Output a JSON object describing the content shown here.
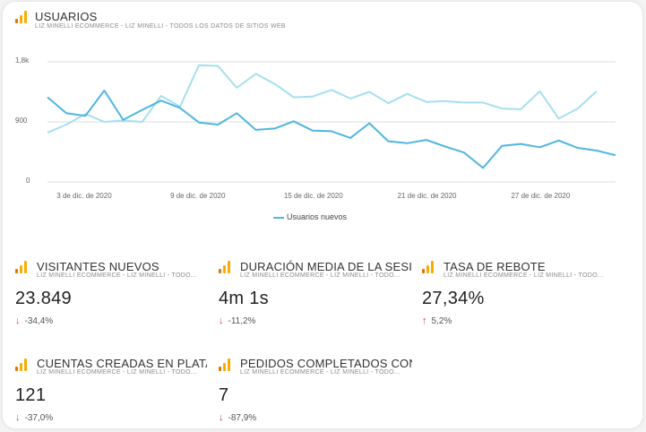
{
  "chart_card": {
    "title": "USUARIOS",
    "subtitle": "LIZ MINELLI ECOMMERCE - LIZ MINELLI - TODOS LOS DATOS DE SITIOS WEB",
    "legend_label": "Usuarios nuevos"
  },
  "chart_data": {
    "type": "line",
    "y_tick_labels": [
      "1,8k",
      "900",
      "0"
    ],
    "ylim": [
      0,
      1800
    ],
    "x_tick_labels": [
      "3 de dic. de 2020",
      "9 de dic. de 2020",
      "15 de dic. de 2020",
      "21 de dic. de 2020",
      "27 de dic. de 2020"
    ],
    "x_tick_indices": [
      2,
      8,
      14,
      20,
      26
    ],
    "grid": true,
    "legend_position": "bottom",
    "series": [
      {
        "name": "Usuarios nuevos",
        "color": "#4fb6e0",
        "values": [
          1270,
          1030,
          990,
          1370,
          930,
          1080,
          1220,
          1110,
          890,
          860,
          1030,
          780,
          800,
          910,
          770,
          760,
          660,
          880,
          610,
          580,
          630,
          530,
          440,
          210,
          540,
          570,
          520,
          620,
          510,
          470,
          400
        ]
      },
      {
        "color": "#a6dff0",
        "values": [
          740,
          860,
          1020,
          900,
          920,
          900,
          1290,
          1130,
          1750,
          1740,
          1410,
          1620,
          1470,
          1270,
          1280,
          1380,
          1250,
          1350,
          1180,
          1320,
          1200,
          1210,
          1190,
          1190,
          1100,
          1090,
          1360,
          950,
          1100,
          1360
        ]
      }
    ]
  },
  "kpis": [
    {
      "title": "VISITANTES NUEVOS",
      "subtitle": "LIZ MINELLI ECOMMERCE - LIZ MINELLI - TODO...",
      "value": "23.849",
      "direction": "down",
      "arrow": "↓",
      "change": "-34,4%"
    },
    {
      "title": "DURACIÓN MEDIA DE LA SESI...",
      "subtitle": "LIZ MINELLI ECOMMERCE - LIZ MINELLI - TODO...",
      "value": "4m 1s",
      "direction": "down",
      "arrow": "↓",
      "change": "-11,2%"
    },
    {
      "title": "TASA DE REBOTE",
      "subtitle": "LIZ MINELLI ECOMMERCE - LIZ MINELLI - TODO...",
      "value": "27,34%",
      "direction": "up",
      "arrow": "↑",
      "change": "5,2%"
    },
    {
      "title": "CUENTAS CREADAS EN PLATA...",
      "subtitle": "LIZ MINELLI ECOMMERCE - LIZ MINELLI - TODO...",
      "value": "121",
      "direction": "down",
      "arrow": "↓",
      "change": "-37,0%"
    },
    {
      "title": "PEDIDOS COMPLETADOS CON ...",
      "subtitle": "LIZ MINELLI ECOMMERCE - LIZ MINELLI - TODO...",
      "value": "7",
      "direction": "down",
      "arrow": "↓",
      "change": "-87,9%"
    }
  ],
  "colors": {
    "arrow_down": "#d6336c",
    "arrow_up": "#d6336c",
    "gridline": "#dcdcdc",
    "icon_orange": "#e37400",
    "icon_yellow": "#f9ab00"
  },
  "icons": {
    "card_icon": "analytics-bar-chart-icon",
    "down_arrow": "arrow-down-icon",
    "up_arrow": "arrow-up-icon"
  }
}
